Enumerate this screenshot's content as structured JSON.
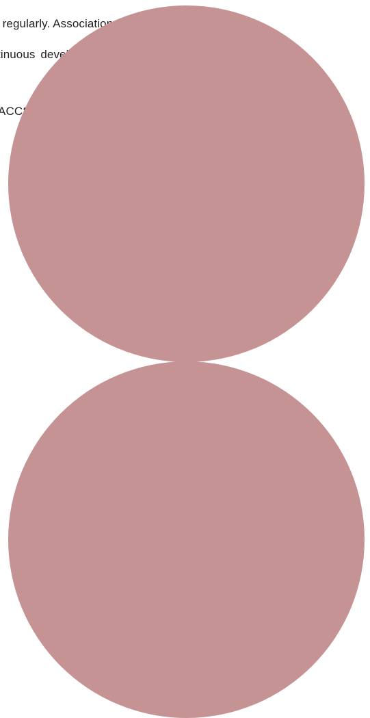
{
  "document": {
    "paragraph_lines": [
      "t regularly. Association",
      "tinuous  development,",
      "ACCS members. Thank"
    ]
  },
  "decorations": {
    "circle_color": "#c69394"
  }
}
